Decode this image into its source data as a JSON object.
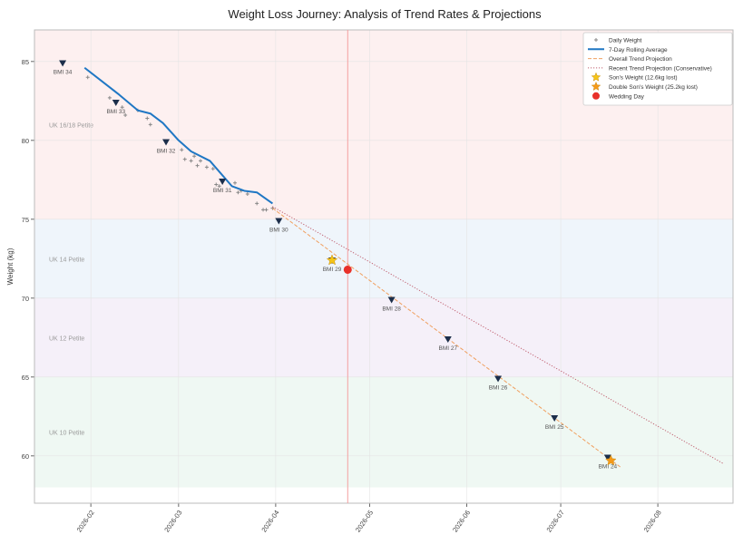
{
  "chart_data": {
    "type": "line",
    "title": "Weight Loss Journey: Analysis of Trend Rates & Projections",
    "xlabel": "",
    "ylabel": "Weight (kg)",
    "xlim": [
      "2026-01-14",
      "2026-08-25"
    ],
    "ylim": [
      57,
      87
    ],
    "grid": true,
    "legend_placement": "top-right",
    "x_ticks": [
      "2026-02-01",
      "2026-03-01",
      "2026-04-01",
      "2026-05-01",
      "2026-06-01",
      "2026-07-01",
      "2026-08-01"
    ],
    "x_tick_labels": [
      "2026-02",
      "2026-03",
      "2026-04",
      "2026-05",
      "2026-06",
      "2026-07",
      "2026-08"
    ],
    "y_ticks": [
      60,
      65,
      70,
      75,
      80,
      85
    ],
    "bands": [
      {
        "label": "UK 16/18 Petite",
        "from": 75,
        "to": 87,
        "color": "#fdf0f0"
      },
      {
        "label": "UK 14 Petite",
        "from": 70,
        "to": 75,
        "color": "#eff5fb"
      },
      {
        "label": "UK 12 Petite",
        "from": 65,
        "to": 70,
        "color": "#f5f0f9"
      },
      {
        "label": "UK 10 Petite",
        "from": 58,
        "to": 65,
        "color": "#eff8f3"
      }
    ],
    "series": [
      {
        "name": "Daily Weight",
        "type": "scatter",
        "color": "#888888",
        "points": [
          [
            "2026-01-31",
            84.0
          ],
          [
            "2026-02-07",
            82.7
          ],
          [
            "2026-02-11",
            82.1
          ],
          [
            "2026-02-12",
            81.6
          ],
          [
            "2026-02-16",
            81.9
          ],
          [
            "2026-02-19",
            81.4
          ],
          [
            "2026-02-20",
            81.0
          ],
          [
            "2026-03-02",
            79.4
          ],
          [
            "2026-03-03",
            78.8
          ],
          [
            "2026-03-05",
            78.7
          ],
          [
            "2026-03-06",
            79.0
          ],
          [
            "2026-03-07",
            78.4
          ],
          [
            "2026-03-08",
            78.7
          ],
          [
            "2026-03-10",
            78.3
          ],
          [
            "2026-03-12",
            78.2
          ],
          [
            "2026-03-13",
            77.2
          ],
          [
            "2026-03-14",
            77.1
          ],
          [
            "2026-03-19",
            77.3
          ],
          [
            "2026-03-20",
            76.7
          ],
          [
            "2026-03-21",
            76.8
          ],
          [
            "2026-03-23",
            76.6
          ],
          [
            "2026-03-26",
            76.0
          ],
          [
            "2026-03-28",
            75.6
          ],
          [
            "2026-03-29",
            75.6
          ],
          [
            "2026-03-31",
            75.7
          ]
        ]
      },
      {
        "name": "7-Day Rolling Average",
        "type": "line",
        "color": "#1f77c4",
        "points": [
          [
            "2026-01-30",
            84.6
          ],
          [
            "2026-02-10",
            82.9
          ],
          [
            "2026-02-16",
            81.9
          ],
          [
            "2026-02-20",
            81.7
          ],
          [
            "2026-02-24",
            81.1
          ],
          [
            "2026-03-01",
            80.0
          ],
          [
            "2026-03-05",
            79.3
          ],
          [
            "2026-03-11",
            78.7
          ],
          [
            "2026-03-18",
            77.1
          ],
          [
            "2026-03-22",
            76.8
          ],
          [
            "2026-03-26",
            76.7
          ],
          [
            "2026-03-31",
            76.0
          ]
        ]
      },
      {
        "name": "Overall Trend Projection",
        "type": "dashed",
        "color": "#f0a060",
        "points": [
          [
            "2026-03-31",
            75.7
          ],
          [
            "2026-07-20",
            59.3
          ]
        ]
      },
      {
        "name": "Recent Trend Projection (Conservative)",
        "type": "dotted",
        "color": "#c06070",
        "points": [
          [
            "2026-03-31",
            75.8
          ],
          [
            "2026-08-22",
            59.5
          ]
        ]
      },
      {
        "name": "Son's Weight (12.6kg lost)",
        "type": "star",
        "color": "#f5c518",
        "points": [
          [
            "2026-04-19",
            72.4
          ]
        ]
      },
      {
        "name": "Double Son's Weight (25.2kg lost)",
        "type": "star",
        "color": "#f59a18",
        "points": [
          [
            "2026-07-17",
            59.7
          ]
        ]
      },
      {
        "name": "Wedding Day",
        "type": "dot",
        "color": "#e8312a",
        "points": [
          [
            "2026-04-24",
            71.8
          ]
        ]
      }
    ],
    "wedding_line": "2026-04-24",
    "bmi_markers": [
      {
        "label": "BMI 34",
        "date": "2026-01-23",
        "weight": 84.9
      },
      {
        "label": "BMI 33",
        "date": "2026-02-09",
        "weight": 82.4
      },
      {
        "label": "BMI 32",
        "date": "2026-02-25",
        "weight": 79.9
      },
      {
        "label": "BMI 31",
        "date": "2026-03-15",
        "weight": 77.4
      },
      {
        "label": "BMI 30",
        "date": "2026-04-02",
        "weight": 74.9
      },
      {
        "label": "BMI 29",
        "date": "2026-04-19",
        "weight": 72.4
      },
      {
        "label": "BMI 28",
        "date": "2026-05-08",
        "weight": 69.9
      },
      {
        "label": "BMI 27",
        "date": "2026-05-26",
        "weight": 67.4
      },
      {
        "label": "BMI 26",
        "date": "2026-06-11",
        "weight": 64.9
      },
      {
        "label": "BMI 25",
        "date": "2026-06-29",
        "weight": 62.4
      },
      {
        "label": "BMI 24",
        "date": "2026-07-16",
        "weight": 59.9
      }
    ]
  }
}
